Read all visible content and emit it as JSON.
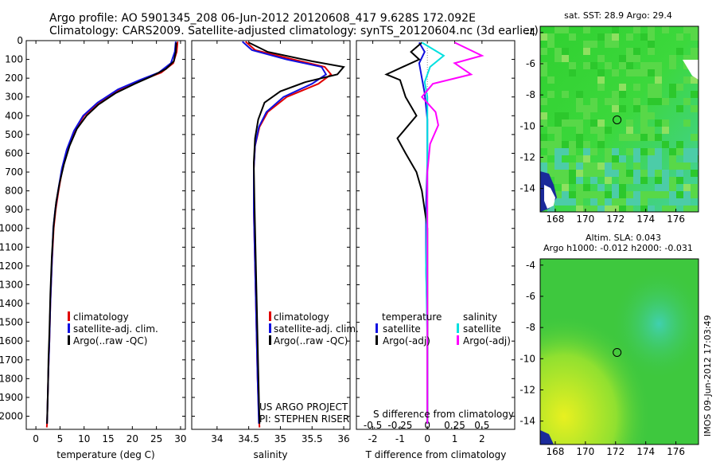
{
  "title": {
    "line1": "Argo profile: AO 5901345_208 06-Jun-2012 20120608_417 9.628S 172.092E",
    "line2": "Climatology: CARS2009. Satellite-adjusted climatology: synTS_20120604.nc (3d earlier)"
  },
  "colors": {
    "climatology": "#e00000",
    "satellite": "#1010e0",
    "argo": "#000000",
    "sat_salinity": "#00e0e0",
    "argo_salinity": "#ff00ff",
    "map_green": "#3fd43c",
    "map_cyan": "#48d6a8"
  },
  "side_stamp": "IMOS 09-Jun-2012 17:03:49",
  "chart_data": [
    {
      "type": "line",
      "name": "temperature-profile",
      "xlabel": "temperature (deg C)",
      "ylabel": "",
      "xlim": [
        -2,
        31
      ],
      "ylim": [
        2070,
        0
      ],
      "xticks": [
        0,
        5,
        10,
        15,
        20,
        25,
        30
      ],
      "yticks": [
        0,
        100,
        200,
        300,
        400,
        500,
        600,
        700,
        800,
        900,
        1000,
        1100,
        1200,
        1300,
        1400,
        1500,
        1600,
        1700,
        1800,
        1900,
        2000
      ],
      "legend": [
        "climatology",
        "satellite-adj. clim.",
        "Argo(..raw -QC)"
      ],
      "series": [
        {
          "name": "climatology",
          "color": "#e00000",
          "x": [
            29.4,
            29.2,
            28.5,
            26.0,
            22.0,
            17.5,
            13.0,
            10.0,
            8.0,
            6.5,
            5.5,
            4.7,
            4.1,
            3.7,
            3.3,
            3.0,
            2.8,
            2.6,
            2.5,
            2.4,
            2.35,
            2.3,
            2.25
          ],
          "y": [
            5,
            60,
            120,
            170,
            210,
            260,
            330,
            400,
            480,
            580,
            680,
            800,
            900,
            1000,
            1200,
            1400,
            1600,
            1750,
            1850,
            1950,
            2000,
            2040,
            2060
          ]
        },
        {
          "name": "satellite-adj. clim.",
          "color": "#1010e0",
          "x": [
            29.0,
            28.8,
            28.0,
            25.5,
            21.5,
            17.0,
            12.8,
            9.8,
            7.9,
            6.4,
            5.4,
            4.6,
            4.0,
            3.6,
            3.3,
            3.0,
            2.8,
            2.6,
            2.5,
            2.4,
            2.35,
            2.3
          ],
          "y": [
            5,
            60,
            120,
            170,
            210,
            260,
            330,
            400,
            480,
            580,
            680,
            800,
            900,
            1000,
            1200,
            1400,
            1600,
            1750,
            1850,
            1950,
            2000,
            2040
          ]
        },
        {
          "name": "Argo(..raw -QC)",
          "color": "#000000",
          "x": [
            29.1,
            29.0,
            28.6,
            27.0,
            24.0,
            20.5,
            16.5,
            13.0,
            10.5,
            8.5,
            7.0,
            5.8,
            4.9,
            4.2,
            3.7,
            3.3,
            3.0,
            2.8,
            2.6,
            2.5,
            2.4,
            2.35,
            2.3
          ],
          "y": [
            10,
            60,
            110,
            150,
            190,
            230,
            280,
            340,
            400,
            470,
            560,
            660,
            760,
            860,
            980,
            1150,
            1350,
            1550,
            1700,
            1850,
            1950,
            2000,
            2040
          ]
        }
      ]
    },
    {
      "type": "line",
      "name": "salinity-profile",
      "xlabel": "salinity",
      "xlim": [
        33.6,
        36.1
      ],
      "ylim": [
        2070,
        0
      ],
      "xticks": [
        34,
        34.5,
        35,
        35.5,
        36
      ],
      "legend": [
        "climatology",
        "satellite-adj. clim.",
        "Argo(..raw -QC)"
      ],
      "annotation": [
        "US ARGO PROJECT",
        "PI: STEPHEN RISER"
      ],
      "series": [
        {
          "name": "climatology",
          "color": "#e00000",
          "x": [
            34.45,
            34.6,
            35.2,
            35.7,
            35.8,
            35.6,
            35.1,
            34.8,
            34.67,
            34.6,
            34.58,
            34.58,
            34.6,
            34.62,
            34.64,
            34.66,
            34.67
          ],
          "y": [
            5,
            50,
            100,
            140,
            180,
            230,
            300,
            380,
            460,
            560,
            680,
            900,
            1200,
            1500,
            1800,
            2000,
            2060
          ]
        },
        {
          "name": "satellite-adj. clim.",
          "color": "#1010e0",
          "x": [
            34.4,
            34.55,
            35.1,
            35.65,
            35.72,
            35.5,
            35.05,
            34.78,
            34.66,
            34.6,
            34.58,
            34.58,
            34.6,
            34.62,
            34.64,
            34.66
          ],
          "y": [
            5,
            50,
            100,
            140,
            180,
            230,
            300,
            380,
            460,
            560,
            680,
            900,
            1200,
            1500,
            1800,
            2040
          ]
        },
        {
          "name": "Argo(..raw -QC)",
          "color": "#000000",
          "x": [
            34.5,
            34.8,
            35.5,
            36.0,
            35.9,
            35.4,
            35.0,
            34.75,
            34.65,
            34.6,
            34.58,
            34.59,
            34.61,
            34.63,
            34.65,
            34.67
          ],
          "y": [
            10,
            60,
            110,
            140,
            180,
            220,
            270,
            330,
            420,
            520,
            650,
            850,
            1150,
            1450,
            1750,
            2040
          ]
        }
      ]
    },
    {
      "type": "line",
      "name": "difference-profile",
      "xlabel": "T difference from climatology",
      "xlabel2": "S difference from climatology",
      "xlim": [
        -2.6,
        3.2
      ],
      "ylim": [
        2070,
        0
      ],
      "xticks": [
        -2,
        -1,
        0,
        1,
        2
      ],
      "xticks2_labels": [
        "-0.5",
        "-0.25",
        "0",
        "0.25",
        "0.5"
      ],
      "xticks2": [
        -2,
        -1,
        0,
        1,
        2
      ],
      "legend_temperature": [
        "temperature",
        "satellite",
        "Argo(-adj)"
      ],
      "legend_salinity": [
        "salinity",
        "satellite",
        "Argo(-adj)"
      ],
      "series": [
        {
          "name": "temperature satellite",
          "color": "#1010e0",
          "x": [
            -0.3,
            -0.1,
            -0.3,
            -0.2,
            -0.1,
            -0.05,
            0.0,
            0.0,
            0.0,
            -0.05,
            -0.05,
            0.0,
            0.0,
            0.0
          ],
          "y": [
            10,
            60,
            120,
            200,
            280,
            350,
            420,
            520,
            650,
            900,
            1200,
            1500,
            1800,
            2040
          ]
        },
        {
          "name": "temperature Argo(-adj)",
          "color": "#000000",
          "x": [
            -0.2,
            -0.6,
            -0.3,
            -1.5,
            -1.0,
            -0.8,
            -0.4,
            -1.1,
            -0.8,
            -0.4,
            -0.2,
            0.0,
            0.0,
            0.0,
            0.0
          ],
          "y": [
            10,
            60,
            100,
            180,
            210,
            300,
            400,
            520,
            600,
            700,
            800,
            1000,
            1400,
            1800,
            2040
          ]
        },
        {
          "name": "salinity satellite",
          "color": "#00e0e0",
          "x": [
            -0.2,
            0.6,
            0.1,
            -0.1,
            0.0,
            0.0,
            0.0,
            -0.05,
            0.0,
            0.0
          ],
          "y": [
            10,
            80,
            140,
            220,
            300,
            500,
            800,
            1200,
            1600,
            2040
          ]
        },
        {
          "name": "salinity Argo(-adj)",
          "color": "#ff00ff",
          "x": [
            1.0,
            2.0,
            1.0,
            1.6,
            0.2,
            -0.2,
            0.3,
            0.4,
            0.1,
            0.0,
            0.0,
            0.0
          ],
          "y": [
            10,
            80,
            120,
            180,
            230,
            300,
            380,
            450,
            550,
            700,
            1000,
            2040
          ]
        }
      ]
    },
    {
      "type": "heatmap",
      "name": "sst-map",
      "title": "sat. SST: 28.9  Argo: 29.4",
      "xticks": [
        168,
        170,
        172,
        174,
        176
      ],
      "yticks": [
        -4,
        -6,
        -8,
        -10,
        -12,
        -14
      ],
      "xlim": [
        167,
        177.5
      ],
      "ylim": [
        -15.5,
        -3.6
      ],
      "argo_location": [
        172.1,
        -9.6
      ]
    },
    {
      "type": "heatmap",
      "name": "sla-map",
      "title": "Altim. SLA: 0.043",
      "subtitle": "Argo h1000: -0.012  h2000: -0.031",
      "xticks": [
        168,
        170,
        172,
        174,
        176
      ],
      "yticks": [
        -4,
        -6,
        -8,
        -10,
        -12,
        -14
      ],
      "xlim": [
        167,
        177.5
      ],
      "ylim": [
        -15.5,
        -3.6
      ],
      "argo_location": [
        172.1,
        -9.6
      ]
    }
  ]
}
